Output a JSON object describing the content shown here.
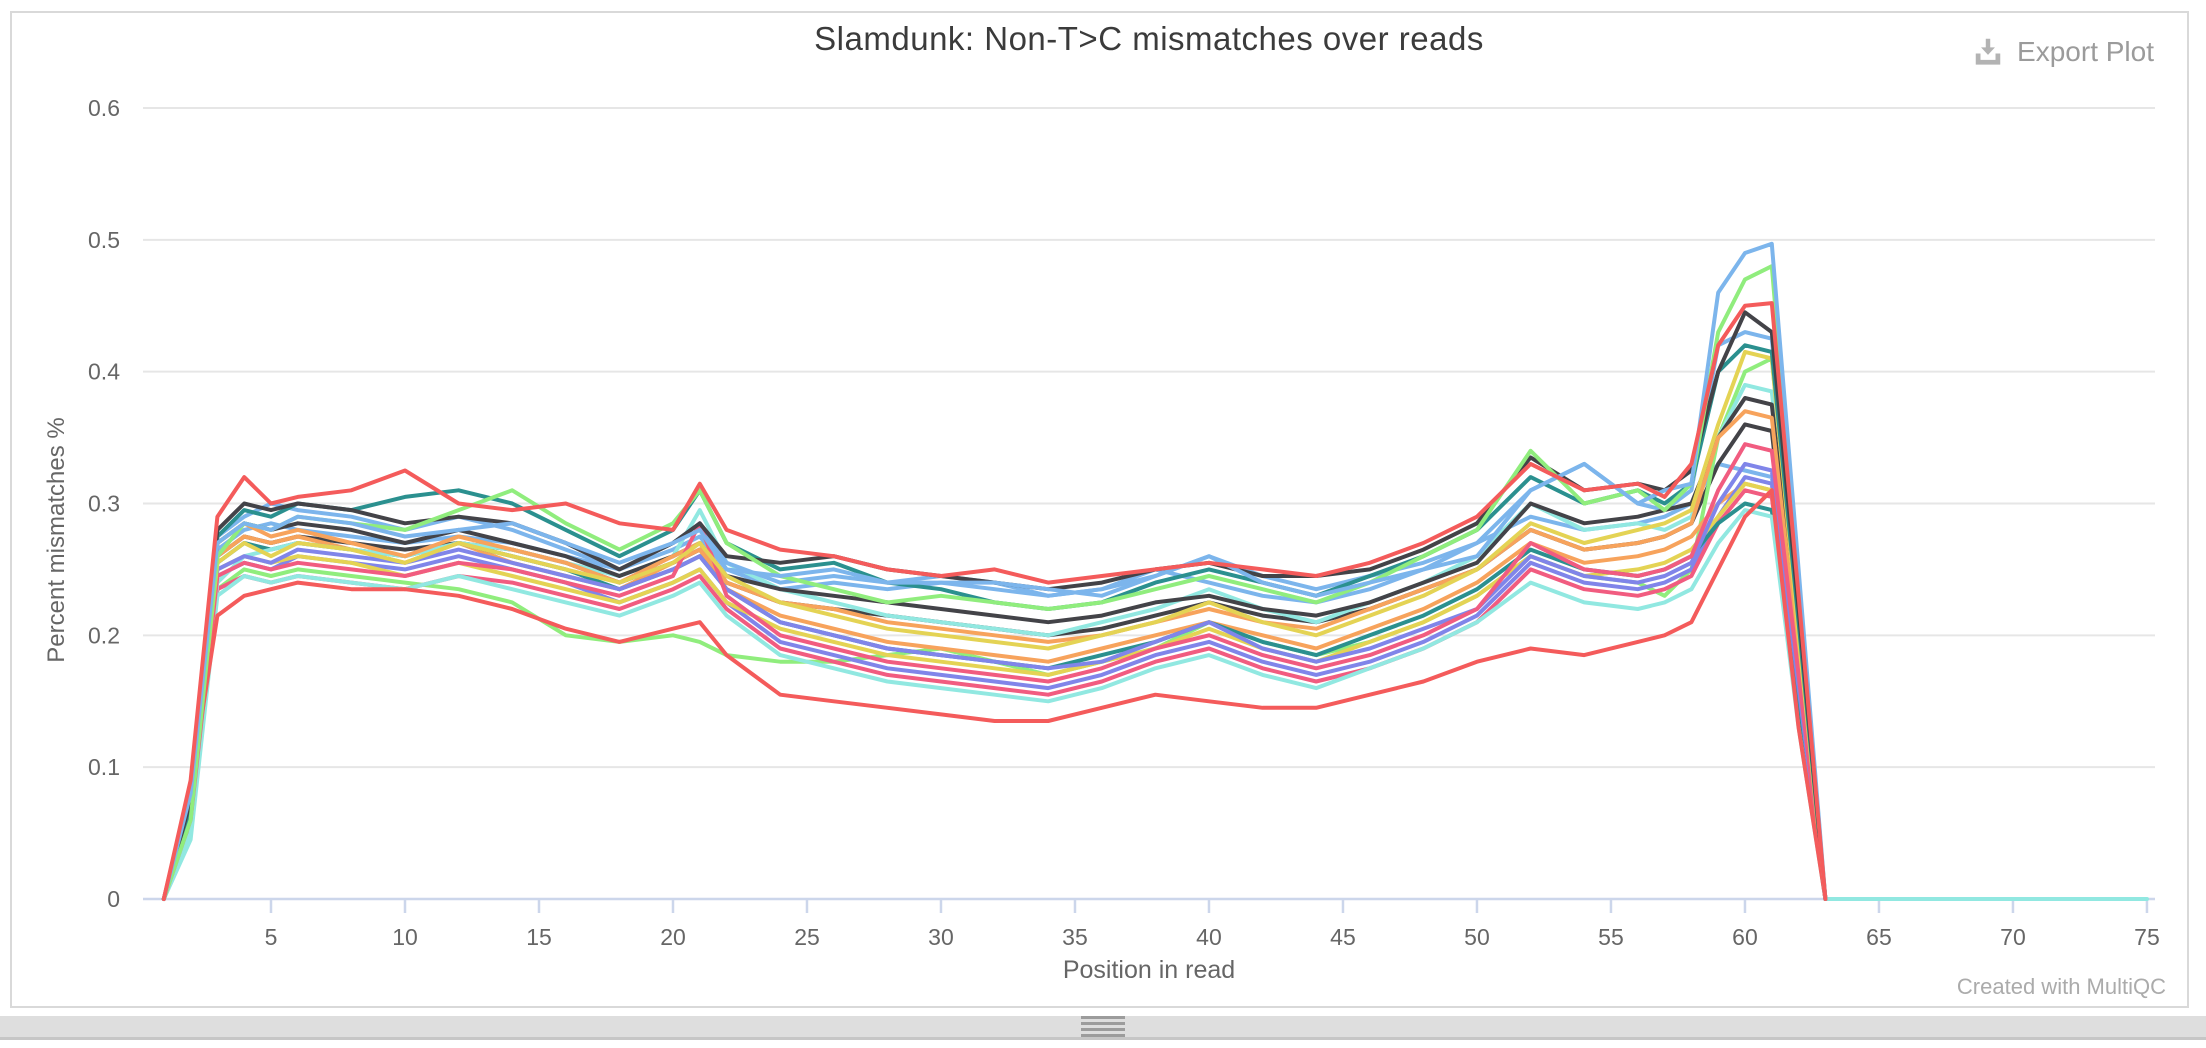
{
  "header": {
    "title": "Slamdunk: Non-T>C mismatches over reads",
    "export_label": "Export Plot",
    "export_icon": "download-icon"
  },
  "footer": {
    "credit": "Created with MultiQC"
  },
  "chart_data": {
    "type": "line",
    "title": "Slamdunk: Non-T>C mismatches over reads",
    "xlabel": "Position in read",
    "ylabel": "Percent mismatches %",
    "xlim": [
      0,
      75.3
    ],
    "ylim": [
      0,
      0.6
    ],
    "xticks": [
      5,
      10,
      15,
      20,
      25,
      30,
      35,
      40,
      45,
      50,
      55,
      60,
      65,
      70,
      75
    ],
    "yticks": [
      0,
      0.1,
      0.2,
      0.3,
      0.4,
      0.5,
      0.6
    ],
    "grid": "horizontal",
    "legend_position": "none",
    "x": [
      1,
      2,
      3,
      4,
      5,
      6,
      8,
      10,
      12,
      14,
      16,
      18,
      20,
      21,
      22,
      24,
      26,
      28,
      30,
      32,
      34,
      36,
      38,
      40,
      42,
      44,
      46,
      48,
      50,
      52,
      54,
      56,
      57,
      58,
      59,
      60,
      61,
      62,
      63,
      65,
      70,
      75
    ],
    "series": [
      {
        "color": "#7cb5ec",
        "values": [
          0,
          0.07,
          0.265,
          0.28,
          0.285,
          0.28,
          0.275,
          0.27,
          0.275,
          0.27,
          0.26,
          0.25,
          0.265,
          0.275,
          0.25,
          0.235,
          0.24,
          0.235,
          0.24,
          0.235,
          0.23,
          0.235,
          0.245,
          0.26,
          0.245,
          0.235,
          0.245,
          0.255,
          0.27,
          0.29,
          0.28,
          0.285,
          0.29,
          0.3,
          0.33,
          0.325,
          0.32,
          0.16,
          0,
          null,
          null,
          null
        ]
      },
      {
        "color": "#434348",
        "values": [
          0,
          0.065,
          0.26,
          0.275,
          0.27,
          0.275,
          0.27,
          0.265,
          0.27,
          0.265,
          0.255,
          0.24,
          0.255,
          0.265,
          0.24,
          0.225,
          0.22,
          0.215,
          0.21,
          0.205,
          0.2,
          0.205,
          0.215,
          0.225,
          0.215,
          0.21,
          0.22,
          0.235,
          0.25,
          0.28,
          0.265,
          0.27,
          0.275,
          0.285,
          0.33,
          0.36,
          0.355,
          0.17,
          0,
          null,
          null,
          null
        ]
      },
      {
        "color": "#90ed7d",
        "values": [
          0,
          0.055,
          0.235,
          0.25,
          0.245,
          0.25,
          0.245,
          0.24,
          0.235,
          0.225,
          0.2,
          0.195,
          0.2,
          0.195,
          0.185,
          0.18,
          0.18,
          0.185,
          0.19,
          0.18,
          0.17,
          0.18,
          0.19,
          0.21,
          0.195,
          0.185,
          0.195,
          0.21,
          0.23,
          0.26,
          0.245,
          0.24,
          0.23,
          0.25,
          0.35,
          0.4,
          0.41,
          0.2,
          0,
          null,
          null,
          null
        ]
      },
      {
        "color": "#f7a35c",
        "values": [
          0,
          0.06,
          0.26,
          0.275,
          0.27,
          0.275,
          0.265,
          0.255,
          0.27,
          0.255,
          0.245,
          0.235,
          0.255,
          0.265,
          0.235,
          0.215,
          0.205,
          0.195,
          0.19,
          0.185,
          0.18,
          0.19,
          0.2,
          0.21,
          0.2,
          0.19,
          0.205,
          0.22,
          0.24,
          0.27,
          0.255,
          0.26,
          0.265,
          0.275,
          0.3,
          0.315,
          0.31,
          0.15,
          0,
          null,
          null,
          null
        ]
      },
      {
        "color": "#8085e9",
        "values": [
          0,
          0.055,
          0.245,
          0.255,
          0.25,
          0.26,
          0.255,
          0.25,
          0.26,
          0.25,
          0.24,
          0.225,
          0.24,
          0.25,
          0.225,
          0.195,
          0.185,
          0.175,
          0.17,
          0.165,
          0.16,
          0.17,
          0.185,
          0.195,
          0.18,
          0.17,
          0.18,
          0.195,
          0.215,
          0.255,
          0.24,
          0.235,
          0.24,
          0.25,
          0.29,
          0.32,
          0.315,
          0.15,
          0,
          null,
          null,
          null
        ]
      },
      {
        "color": "#f15c80",
        "values": [
          0,
          0.05,
          0.235,
          0.245,
          0.24,
          0.245,
          0.24,
          0.235,
          0.245,
          0.24,
          0.23,
          0.22,
          0.235,
          0.245,
          0.22,
          0.19,
          0.18,
          0.17,
          0.165,
          0.16,
          0.155,
          0.165,
          0.18,
          0.19,
          0.175,
          0.165,
          0.175,
          0.19,
          0.21,
          0.25,
          0.235,
          0.23,
          0.235,
          0.245,
          0.285,
          0.31,
          0.305,
          0.14,
          0,
          null,
          null,
          null
        ]
      },
      {
        "color": "#e4d354",
        "values": [
          0,
          0.06,
          0.25,
          0.26,
          0.255,
          0.26,
          0.255,
          0.245,
          0.255,
          0.245,
          0.235,
          0.225,
          0.24,
          0.25,
          0.225,
          0.205,
          0.195,
          0.185,
          0.18,
          0.175,
          0.17,
          0.18,
          0.19,
          0.205,
          0.19,
          0.18,
          0.195,
          0.21,
          0.23,
          0.26,
          0.245,
          0.25,
          0.255,
          0.265,
          0.29,
          0.315,
          0.31,
          0.15,
          0,
          null,
          null,
          null
        ]
      },
      {
        "color": "#2b908f",
        "values": [
          0,
          0.065,
          0.255,
          0.27,
          0.265,
          0.27,
          0.265,
          0.26,
          0.27,
          0.26,
          0.25,
          0.235,
          0.25,
          0.26,
          0.235,
          0.21,
          0.2,
          0.19,
          0.185,
          0.18,
          0.175,
          0.185,
          0.195,
          0.21,
          0.195,
          0.185,
          0.2,
          0.215,
          0.235,
          0.265,
          0.25,
          0.245,
          0.25,
          0.26,
          0.285,
          0.3,
          0.295,
          0.14,
          0,
          null,
          null,
          null
        ]
      },
      {
        "color": "#91e8e1",
        "values": [
          0,
          0.045,
          0.23,
          0.245,
          0.24,
          0.245,
          0.24,
          0.235,
          0.245,
          0.235,
          0.225,
          0.215,
          0.23,
          0.24,
          0.215,
          0.185,
          0.175,
          0.165,
          0.16,
          0.155,
          0.15,
          0.16,
          0.175,
          0.185,
          0.17,
          0.16,
          0.175,
          0.19,
          0.21,
          0.24,
          0.225,
          0.22,
          0.225,
          0.235,
          0.27,
          0.295,
          0.29,
          0.13,
          0,
          null,
          null,
          null
        ]
      },
      {
        "color": "#91e8e1",
        "values": [
          0,
          0.05,
          0.24,
          0.26,
          0.265,
          0.27,
          0.265,
          0.26,
          0.27,
          0.265,
          0.255,
          0.245,
          0.26,
          0.295,
          0.255,
          0.235,
          0.225,
          0.215,
          0.21,
          0.205,
          0.2,
          0.21,
          0.22,
          0.235,
          0.22,
          0.21,
          0.225,
          0.24,
          0.26,
          0.3,
          0.28,
          0.285,
          0.28,
          0.29,
          0.35,
          0.39,
          0.385,
          0.19,
          0,
          0,
          0,
          0
        ]
      },
      {
        "color": "#7cb5ec",
        "values": [
          0,
          0.075,
          0.275,
          0.29,
          0.3,
          0.295,
          0.29,
          0.28,
          0.29,
          0.28,
          0.265,
          0.25,
          0.27,
          0.285,
          0.255,
          0.24,
          0.245,
          0.24,
          0.245,
          0.24,
          0.23,
          0.235,
          0.25,
          0.24,
          0.23,
          0.225,
          0.235,
          0.25,
          0.27,
          0.31,
          0.33,
          0.3,
          0.295,
          0.31,
          0.42,
          0.43,
          0.425,
          0.21,
          0,
          null,
          null,
          null
        ]
      },
      {
        "color": "#434348",
        "values": [
          0,
          0.07,
          0.27,
          0.285,
          0.28,
          0.285,
          0.28,
          0.27,
          0.28,
          0.27,
          0.26,
          0.245,
          0.26,
          0.27,
          0.245,
          0.235,
          0.23,
          0.225,
          0.22,
          0.215,
          0.21,
          0.215,
          0.225,
          0.23,
          0.22,
          0.215,
          0.225,
          0.24,
          0.255,
          0.3,
          0.285,
          0.29,
          0.295,
          0.3,
          0.35,
          0.38,
          0.375,
          0.19,
          0,
          null,
          null,
          null
        ]
      },
      {
        "color": "#f7a35c",
        "values": [
          0,
          0.07,
          0.27,
          0.285,
          0.275,
          0.28,
          0.27,
          0.26,
          0.275,
          0.265,
          0.255,
          0.24,
          0.26,
          0.27,
          0.24,
          0.225,
          0.22,
          0.21,
          0.205,
          0.2,
          0.195,
          0.2,
          0.21,
          0.22,
          0.21,
          0.205,
          0.22,
          0.235,
          0.25,
          0.28,
          0.265,
          0.27,
          0.275,
          0.285,
          0.35,
          0.37,
          0.365,
          0.18,
          0,
          null,
          null,
          null
        ]
      },
      {
        "color": "#8085e9",
        "values": [
          0,
          0.065,
          0.25,
          0.26,
          0.255,
          0.265,
          0.26,
          0.255,
          0.265,
          0.255,
          0.245,
          0.235,
          0.25,
          0.26,
          0.235,
          0.21,
          0.2,
          0.19,
          0.185,
          0.18,
          0.175,
          0.18,
          0.195,
          0.21,
          0.19,
          0.18,
          0.19,
          0.205,
          0.22,
          0.26,
          0.245,
          0.24,
          0.245,
          0.255,
          0.3,
          0.33,
          0.325,
          0.16,
          0,
          null,
          null,
          null
        ]
      },
      {
        "color": "#f15c80",
        "values": [
          0,
          0.06,
          0.245,
          0.255,
          0.25,
          0.255,
          0.25,
          0.245,
          0.255,
          0.25,
          0.24,
          0.23,
          0.245,
          0.285,
          0.23,
          0.2,
          0.19,
          0.18,
          0.175,
          0.17,
          0.165,
          0.175,
          0.19,
          0.2,
          0.185,
          0.175,
          0.185,
          0.2,
          0.22,
          0.27,
          0.25,
          0.245,
          0.25,
          0.26,
          0.31,
          0.345,
          0.34,
          0.17,
          0,
          null,
          null,
          null
        ]
      },
      {
        "color": "#e4d354",
        "values": [
          0,
          0.065,
          0.255,
          0.27,
          0.26,
          0.27,
          0.265,
          0.255,
          0.27,
          0.26,
          0.25,
          0.24,
          0.255,
          0.27,
          0.245,
          0.225,
          0.215,
          0.205,
          0.2,
          0.195,
          0.19,
          0.2,
          0.21,
          0.225,
          0.21,
          0.2,
          0.215,
          0.23,
          0.25,
          0.285,
          0.27,
          0.28,
          0.285,
          0.295,
          0.36,
          0.415,
          0.41,
          0.2,
          0,
          null,
          null,
          null
        ]
      },
      {
        "color": "#2b908f",
        "values": [
          0,
          0.07,
          0.275,
          0.295,
          0.29,
          0.3,
          0.295,
          0.305,
          0.31,
          0.3,
          0.28,
          0.26,
          0.28,
          0.31,
          0.27,
          0.25,
          0.255,
          0.24,
          0.235,
          0.225,
          0.22,
          0.225,
          0.24,
          0.25,
          0.24,
          0.23,
          0.245,
          0.26,
          0.28,
          0.32,
          0.3,
          0.31,
          0.3,
          0.315,
          0.4,
          0.42,
          0.415,
          0.21,
          0,
          null,
          null,
          null
        ]
      },
      {
        "color": "#434348",
        "values": [
          0,
          0.075,
          0.28,
          0.3,
          0.295,
          0.3,
          0.295,
          0.285,
          0.29,
          0.285,
          0.27,
          0.25,
          0.27,
          0.285,
          0.26,
          0.255,
          0.26,
          0.25,
          0.245,
          0.24,
          0.235,
          0.24,
          0.25,
          0.255,
          0.245,
          0.245,
          0.25,
          0.265,
          0.285,
          0.335,
          0.31,
          0.315,
          0.31,
          0.325,
          0.4,
          0.445,
          0.43,
          0.22,
          0,
          null,
          null,
          null
        ]
      },
      {
        "color": "#f45b5b",
        "values": [
          0,
          0.085,
          0.215,
          0.23,
          0.235,
          0.24,
          0.235,
          0.235,
          0.23,
          0.22,
          0.205,
          0.195,
          0.205,
          0.21,
          0.185,
          0.155,
          0.15,
          0.145,
          0.14,
          0.135,
          0.135,
          0.145,
          0.155,
          0.15,
          0.145,
          0.145,
          0.155,
          0.165,
          0.18,
          0.19,
          0.185,
          0.195,
          0.2,
          0.21,
          0.25,
          0.29,
          0.31,
          0.13,
          0,
          null,
          null,
          null
        ]
      },
      {
        "color": "#90ed7d",
        "values": [
          0,
          0.06,
          0.26,
          0.285,
          0.28,
          0.29,
          0.285,
          0.28,
          0.295,
          0.31,
          0.285,
          0.265,
          0.285,
          0.31,
          0.27,
          0.245,
          0.235,
          0.225,
          0.23,
          0.225,
          0.22,
          0.225,
          0.235,
          0.245,
          0.235,
          0.225,
          0.24,
          0.26,
          0.28,
          0.34,
          0.3,
          0.31,
          0.295,
          0.315,
          0.43,
          0.47,
          0.48,
          0.24,
          0,
          null,
          null,
          null
        ]
      },
      {
        "color": "#7cb5ec",
        "values": [
          0,
          0.08,
          0.27,
          0.285,
          0.28,
          0.29,
          0.285,
          0.275,
          0.28,
          0.285,
          0.27,
          0.255,
          0.27,
          0.28,
          0.25,
          0.245,
          0.25,
          0.24,
          0.24,
          0.24,
          0.235,
          0.23,
          0.245,
          0.26,
          0.24,
          0.23,
          0.24,
          0.25,
          0.26,
          0.31,
          0.33,
          0.3,
          0.31,
          0.315,
          0.46,
          0.49,
          0.497,
          0.25,
          0,
          null,
          null,
          null
        ]
      },
      {
        "color": "#f45b5b",
        "values": [
          0,
          0.09,
          0.29,
          0.32,
          0.3,
          0.305,
          0.31,
          0.325,
          0.3,
          0.295,
          0.3,
          0.285,
          0.28,
          0.315,
          0.28,
          0.265,
          0.26,
          0.25,
          0.245,
          0.25,
          0.24,
          0.245,
          0.25,
          0.255,
          0.25,
          0.245,
          0.255,
          0.27,
          0.29,
          0.33,
          0.31,
          0.315,
          0.305,
          0.33,
          0.42,
          0.45,
          0.452,
          0.23,
          0,
          null,
          null,
          null
        ]
      }
    ]
  }
}
